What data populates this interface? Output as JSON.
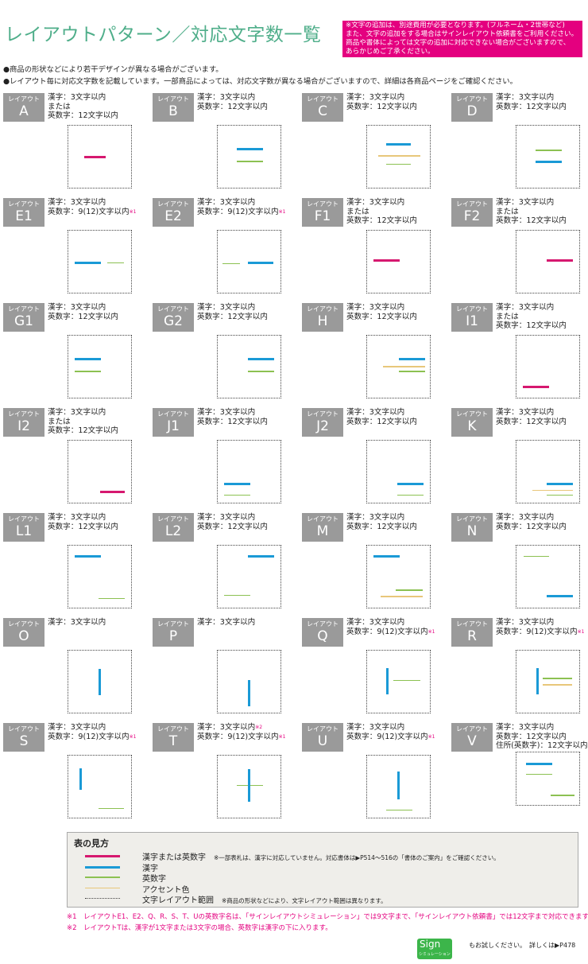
{
  "title": "レイアウトパターン／対応文字数一覧",
  "notice": [
    "※文字の追加は、別途費用が必要となります。(フルネーム・2世帯など)",
    "また、文字の追加をする場合はサインレイアウト依頼書をご利用ください。",
    "商品や書体によっては文字の追加に対応できない場合がございますので、",
    "あらかじめご了承ください。"
  ],
  "bullets": [
    "●商品の形状などにより若干デザインが異なる場合がございます。",
    "●レイアウト毎に対応文字数を記載しています。一部商品によっては、対応文字数が異なる場合がございますので、詳細は各商品ページをご確認ください。"
  ],
  "label_prefix": "レイアウト",
  "colors": {
    "kanji_or_alnum": "#d6186f",
    "kanji": "#1a9ad6",
    "alnum": "#8cc152",
    "accent": "#e8c77a",
    "title": "#4fae8a",
    "notice_bg": "#e4007f",
    "label_bg": "#9a9a9a"
  },
  "layouts": [
    {
      "id": "A",
      "spec": [
        {
          "t": "漢字：3文字以内"
        },
        {
          "t": "または"
        },
        {
          "t": "英数字：12文字以内"
        }
      ]
    },
    {
      "id": "B",
      "spec": [
        {
          "t": "漢字：3文字以内"
        },
        {
          "t": "英数字：12文字以内"
        }
      ]
    },
    {
      "id": "C",
      "spec": [
        {
          "t": "漢字：3文字以内"
        },
        {
          "t": "英数字：12文字以内"
        }
      ]
    },
    {
      "id": "D",
      "spec": [
        {
          "t": "漢字：3文字以内"
        },
        {
          "t": "英数字：12文字以内"
        }
      ]
    },
    {
      "id": "E1",
      "spec": [
        {
          "t": "漢字：3文字以内"
        },
        {
          "t": "英数字：9(12)文字以内",
          "n": "※1"
        }
      ]
    },
    {
      "id": "E2",
      "spec": [
        {
          "t": "漢字：3文字以内"
        },
        {
          "t": "英数字：9(12)文字以内",
          "n": "※1"
        }
      ]
    },
    {
      "id": "F1",
      "spec": [
        {
          "t": "漢字：3文字以内"
        },
        {
          "t": "または"
        },
        {
          "t": "英数字：12文字以内"
        }
      ]
    },
    {
      "id": "F2",
      "spec": [
        {
          "t": "漢字：3文字以内"
        },
        {
          "t": "または"
        },
        {
          "t": "英数字：12文字以内"
        }
      ]
    },
    {
      "id": "G1",
      "spec": [
        {
          "t": "漢字：3文字以内"
        },
        {
          "t": "英数字：12文字以内"
        }
      ]
    },
    {
      "id": "G2",
      "spec": [
        {
          "t": "漢字：3文字以内"
        },
        {
          "t": "英数字：12文字以内"
        }
      ]
    },
    {
      "id": "H",
      "spec": [
        {
          "t": "漢字：3文字以内"
        },
        {
          "t": "英数字：12文字以内"
        }
      ]
    },
    {
      "id": "I1",
      "spec": [
        {
          "t": "漢字：3文字以内"
        },
        {
          "t": "または"
        },
        {
          "t": "英数字：12文字以内"
        }
      ]
    },
    {
      "id": "I2",
      "spec": [
        {
          "t": "漢字：3文字以内"
        },
        {
          "t": "または"
        },
        {
          "t": "英数字：12文字以内"
        }
      ]
    },
    {
      "id": "J1",
      "spec": [
        {
          "t": "漢字：3文字以内"
        },
        {
          "t": "英数字：12文字以内"
        }
      ]
    },
    {
      "id": "J2",
      "spec": [
        {
          "t": "漢字：3文字以内"
        },
        {
          "t": "英数字：12文字以内"
        }
      ]
    },
    {
      "id": "K",
      "spec": [
        {
          "t": "漢字：3文字以内"
        },
        {
          "t": "英数字：12文字以内"
        }
      ]
    },
    {
      "id": "L1",
      "spec": [
        {
          "t": "漢字：3文字以内"
        },
        {
          "t": "英数字：12文字以内"
        }
      ]
    },
    {
      "id": "L2",
      "spec": [
        {
          "t": "漢字：3文字以内"
        },
        {
          "t": "英数字：12文字以内"
        }
      ]
    },
    {
      "id": "M",
      "spec": [
        {
          "t": "漢字：3文字以内"
        },
        {
          "t": "英数字：12文字以内"
        }
      ]
    },
    {
      "id": "N",
      "spec": [
        {
          "t": "漢字：3文字以内"
        },
        {
          "t": "英数字：12文字以内"
        }
      ]
    },
    {
      "id": "O",
      "spec": [
        {
          "t": "漢字：3文字以内"
        }
      ]
    },
    {
      "id": "P",
      "spec": [
        {
          "t": "漢字：3文字以内"
        }
      ]
    },
    {
      "id": "Q",
      "spec": [
        {
          "t": "漢字：3文字以内"
        },
        {
          "t": "英数字：9(12)文字以内",
          "n": "※1"
        }
      ]
    },
    {
      "id": "R",
      "spec": [
        {
          "t": "漢字：3文字以内"
        },
        {
          "t": "英数字：9(12)文字以内",
          "n": "※1"
        }
      ]
    },
    {
      "id": "S",
      "spec": [
        {
          "t": "漢字：3文字以内"
        },
        {
          "t": "英数字：9(12)文字以内",
          "n": "※1"
        }
      ]
    },
    {
      "id": "T",
      "spec": [
        {
          "t": "漢字：3文字以内",
          "n": "※2"
        },
        {
          "t": "英数字：9(12)文字以内",
          "n": "※1"
        }
      ]
    },
    {
      "id": "U",
      "spec": [
        {
          "t": "漢字：3文字以内"
        },
        {
          "t": "英数字：9(12)文字以内",
          "n": "※1"
        }
      ]
    },
    {
      "id": "V",
      "spec": [
        {
          "t": "漢字：3文字以内"
        },
        {
          "t": "英数字：12文字以内"
        },
        {
          "t": "住所(英数字)：12文字以内"
        }
      ]
    }
  ],
  "legend": {
    "heading": "表の見方",
    "items": [
      {
        "type": "kanji_or_alnum",
        "label": "漢字または英数字",
        "note": "※一部表札は、漢字に対応していません。対応書体は▶P514〜516の「書体のご案内」をご確認ください。"
      },
      {
        "type": "kanji",
        "label": "漢字",
        "note": ""
      },
      {
        "type": "alnum",
        "label": "英数字",
        "note": ""
      },
      {
        "type": "accent",
        "label": "アクセント色",
        "note": ""
      },
      {
        "type": "range",
        "label": "文字レイアウト範囲",
        "note": "※商品の形状などにより、文字レイアウト範囲は異なります。"
      }
    ]
  },
  "footnotes": [
    "※1　レイアウトE1、E2、Q、R、S、T、Uの英数字名は、「サインレイアウトシミュレーション」では9文字まで、「サインレイアウト依頼書」では12文字まで対応できます。",
    "※2　レイアウトTは、漢字が1文字または3文字の場合、英数字は漢字の下に入ります。"
  ],
  "sign_logo": {
    "text": "Sign",
    "sub": "シミュレーション"
  },
  "try_text": "もお試しください。　詳しくは▶P478"
}
